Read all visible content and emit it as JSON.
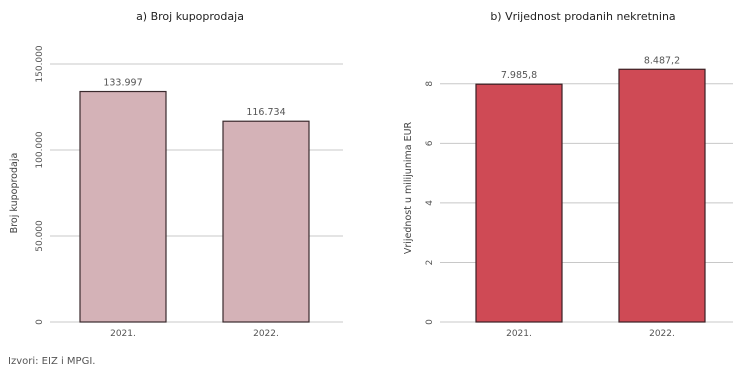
{
  "chart_data": [
    {
      "type": "bar",
      "title": "a) Broj kupoprodaja",
      "xlabel": "",
      "ylabel": "Broj kupoprodaja",
      "categories": [
        "2021.",
        "2022."
      ],
      "values": [
        133997,
        116734
      ],
      "data_labels": [
        "133.997",
        "116.734"
      ],
      "ylim": [
        0,
        150000
      ],
      "yticks": [
        0,
        50000,
        100000,
        150000
      ],
      "ytick_labels": [
        "0",
        "50.000",
        "100.000",
        "150.000"
      ],
      "grid": true,
      "legend": "none",
      "bar_color": "#d4b2b7",
      "bar_edge_color": "#3a2a2d"
    },
    {
      "type": "bar",
      "title": "b) Vrijednost prodanih nekretnina",
      "xlabel": "",
      "ylabel": "Vrijednost u milijunima EUR",
      "categories": [
        "2021.",
        "2022."
      ],
      "values": [
        7985.8,
        8487.2
      ],
      "data_labels": [
        "7.985,8",
        "8.487,2"
      ],
      "ylim": [
        0,
        9000
      ],
      "yticks": [
        0,
        2000,
        4000,
        6000,
        8000
      ],
      "ytick_labels": [
        "0",
        "2",
        "4",
        "6",
        "8"
      ],
      "grid": true,
      "legend": "none",
      "bar_color": "#cf4a55",
      "bar_edge_color": "#3a2024"
    }
  ],
  "source": "Izvori: EIZ i MPGI."
}
